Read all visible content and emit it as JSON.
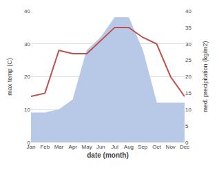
{
  "chart_data": {
    "type": "line",
    "categories": [
      "Jan",
      "Feb",
      "Mar",
      "Apr",
      "May",
      "Jun",
      "Jul",
      "Aug",
      "Sep",
      "Oct",
      "Nov",
      "Dec"
    ],
    "series": [
      {
        "type": "line",
        "color": "#c0504d",
        "axis": "y",
        "values": [
          14,
          15,
          28,
          27,
          27,
          31,
          35,
          35,
          32,
          30,
          20,
          14
        ]
      },
      {
        "type": "area",
        "color": "#b8c9e8",
        "axis": "y2",
        "values": [
          9,
          9,
          10,
          13,
          28,
          32,
          38,
          38,
          28,
          12,
          12,
          12
        ]
      }
    ],
    "xlabel": "date (month)",
    "ylabel": "max temp (C)",
    "y2label": "med. precipitation (kg/m2)",
    "ylim": [
      0,
      40
    ],
    "yticks": [
      0,
      10,
      20,
      30,
      40
    ],
    "y2lim": [
      0,
      40
    ],
    "y2ticks": [
      0,
      5,
      10,
      15,
      20,
      25,
      30,
      35,
      40
    ],
    "grid": true
  }
}
